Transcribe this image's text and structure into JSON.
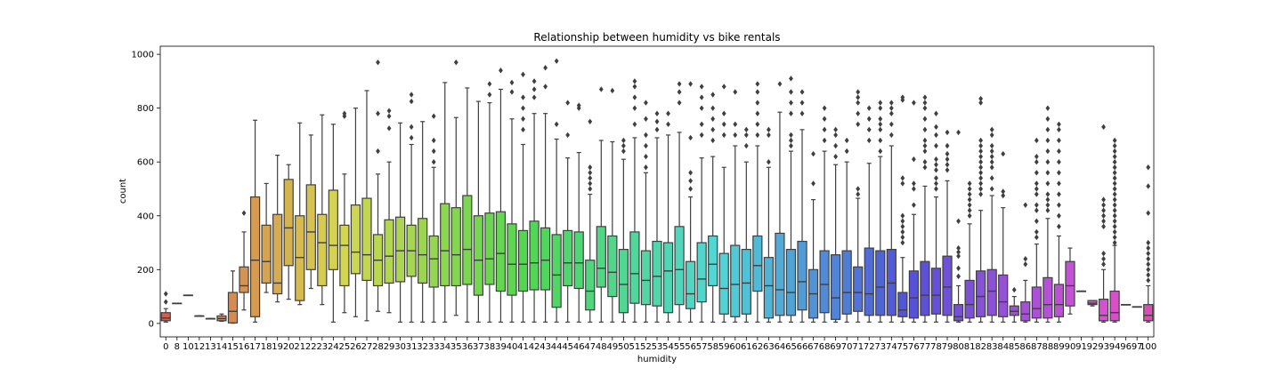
{
  "chart_data": {
    "type": "box",
    "title": "Relationship between humidity vs bike rentals",
    "xlabel": "humidity",
    "ylabel": "count",
    "ylim": [
      -50,
      1030
    ],
    "yticks": [
      0,
      200,
      400,
      600,
      800,
      1000
    ],
    "grid": false,
    "legend": "none",
    "palette": "husl",
    "boxes": [
      {
        "x": "0",
        "q1": 10,
        "median": 20,
        "q3": 40,
        "wlow": 5,
        "whigh": 55,
        "outliers": [
          80,
          110
        ]
      },
      {
        "x": "8",
        "q1": 75,
        "median": 75,
        "q3": 75,
        "wlow": 75,
        "whigh": 75,
        "outliers": []
      },
      {
        "x": "10",
        "q1": 105,
        "median": 105,
        "q3": 105,
        "wlow": 105,
        "whigh": 105,
        "outliers": []
      },
      {
        "x": "12",
        "q1": 28,
        "median": 28,
        "q3": 28,
        "wlow": 28,
        "whigh": 28,
        "outliers": []
      },
      {
        "x": "13",
        "q1": 18,
        "median": 18,
        "q3": 18,
        "wlow": 18,
        "whigh": 18,
        "outliers": []
      },
      {
        "x": "14",
        "q1": 10,
        "median": 18,
        "q3": 28,
        "wlow": 8,
        "whigh": 35,
        "outliers": []
      },
      {
        "x": "15",
        "q1": 2,
        "median": 45,
        "q3": 115,
        "wlow": 1,
        "whigh": 195,
        "outliers": []
      },
      {
        "x": "16",
        "q1": 115,
        "median": 140,
        "q3": 210,
        "wlow": 50,
        "whigh": 340,
        "outliers": [
          410
        ]
      },
      {
        "x": "17",
        "q1": 25,
        "median": 235,
        "q3": 470,
        "wlow": 5,
        "whigh": 755,
        "outliers": []
      },
      {
        "x": "18",
        "q1": 150,
        "median": 230,
        "q3": 365,
        "wlow": 115,
        "whigh": 520,
        "outliers": []
      },
      {
        "x": "19",
        "q1": 110,
        "median": 150,
        "q3": 405,
        "wlow": 80,
        "whigh": 625,
        "outliers": []
      },
      {
        "x": "20",
        "q1": 215,
        "median": 355,
        "q3": 535,
        "wlow": 90,
        "whigh": 590,
        "outliers": []
      },
      {
        "x": "21",
        "q1": 85,
        "median": 245,
        "q3": 400,
        "wlow": 70,
        "whigh": 745,
        "outliers": []
      },
      {
        "x": "22",
        "q1": 200,
        "median": 340,
        "q3": 515,
        "wlow": 130,
        "whigh": 700,
        "outliers": []
      },
      {
        "x": "23",
        "q1": 140,
        "median": 300,
        "q3": 405,
        "wlow": 70,
        "whigh": 775,
        "outliers": []
      },
      {
        "x": "24",
        "q1": 200,
        "median": 290,
        "q3": 495,
        "wlow": 5,
        "whigh": 740,
        "outliers": []
      },
      {
        "x": "25",
        "q1": 140,
        "median": 290,
        "q3": 365,
        "wlow": 40,
        "whigh": 555,
        "outliers": [
          770,
          780
        ]
      },
      {
        "x": "26",
        "q1": 185,
        "median": 265,
        "q3": 440,
        "wlow": 25,
        "whigh": 800,
        "outliers": []
      },
      {
        "x": "27",
        "q1": 160,
        "median": 255,
        "q3": 465,
        "wlow": 10,
        "whigh": 865,
        "outliers": []
      },
      {
        "x": "28",
        "q1": 140,
        "median": 235,
        "q3": 330,
        "wlow": 45,
        "whigh": 555,
        "outliers": [
          640,
          780,
          970
        ]
      },
      {
        "x": "29",
        "q1": 150,
        "median": 250,
        "q3": 385,
        "wlow": 40,
        "whigh": 600,
        "outliers": [
          725,
          770,
          790
        ]
      },
      {
        "x": "30",
        "q1": 155,
        "median": 270,
        "q3": 395,
        "wlow": 5,
        "whigh": 745,
        "outliers": []
      },
      {
        "x": "31",
        "q1": 175,
        "median": 270,
        "q3": 365,
        "wlow": 5,
        "whigh": 665,
        "outliers": [
          690,
          730,
          825,
          850
        ]
      },
      {
        "x": "32",
        "q1": 150,
        "median": 255,
        "q3": 390,
        "wlow": 5,
        "whigh": 750,
        "outliers": []
      },
      {
        "x": "33",
        "q1": 135,
        "median": 240,
        "q3": 325,
        "wlow": 5,
        "whigh": 580,
        "outliers": [
          600,
          640,
          680,
          770
        ]
      },
      {
        "x": "34",
        "q1": 140,
        "median": 270,
        "q3": 445,
        "wlow": 5,
        "whigh": 895,
        "outliers": []
      },
      {
        "x": "35",
        "q1": 140,
        "median": 255,
        "q3": 430,
        "wlow": 30,
        "whigh": 765,
        "outliers": [
          970
        ]
      },
      {
        "x": "36",
        "q1": 145,
        "median": 275,
        "q3": 475,
        "wlow": 5,
        "whigh": 875,
        "outliers": []
      },
      {
        "x": "37",
        "q1": 105,
        "median": 235,
        "q3": 400,
        "wlow": 5,
        "whigh": 825,
        "outliers": []
      },
      {
        "x": "38",
        "q1": 145,
        "median": 240,
        "q3": 410,
        "wlow": 5,
        "whigh": 820,
        "outliers": [
          850,
          890
        ]
      },
      {
        "x": "39",
        "q1": 120,
        "median": 260,
        "q3": 415,
        "wlow": 5,
        "whigh": 870,
        "outliers": [
          940
        ]
      },
      {
        "x": "40",
        "q1": 105,
        "median": 220,
        "q3": 370,
        "wlow": 5,
        "whigh": 760,
        "outliers": [
          860,
          895
        ]
      },
      {
        "x": "41",
        "q1": 120,
        "median": 220,
        "q3": 345,
        "wlow": 5,
        "whigh": 665,
        "outliers": [
          720,
          760,
          800,
          840,
          925
        ]
      },
      {
        "x": "42",
        "q1": 125,
        "median": 225,
        "q3": 380,
        "wlow": 5,
        "whigh": 780,
        "outliers": [
          840,
          870,
          900
        ]
      },
      {
        "x": "43",
        "q1": 125,
        "median": 235,
        "q3": 355,
        "wlow": 5,
        "whigh": 780,
        "outliers": [
          880,
          950
        ]
      },
      {
        "x": "44",
        "q1": 60,
        "median": 180,
        "q3": 330,
        "wlow": 5,
        "whigh": 685,
        "outliers": [
          740,
          975
        ]
      },
      {
        "x": "45",
        "q1": 140,
        "median": 225,
        "q3": 345,
        "wlow": 5,
        "whigh": 615,
        "outliers": [
          700,
          820
        ]
      },
      {
        "x": "46",
        "q1": 130,
        "median": 225,
        "q3": 340,
        "wlow": 5,
        "whigh": 635,
        "outliers": [
          800,
          810
        ]
      },
      {
        "x": "47",
        "q1": 50,
        "median": 120,
        "q3": 235,
        "wlow": 5,
        "whigh": 480,
        "outliers": [
          500,
          520,
          540,
          560,
          580,
          750
        ]
      },
      {
        "x": "48",
        "q1": 135,
        "median": 205,
        "q3": 360,
        "wlow": 5,
        "whigh": 680,
        "outliers": [
          870
        ]
      },
      {
        "x": "49",
        "q1": 100,
        "median": 190,
        "q3": 325,
        "wlow": 5,
        "whigh": 675,
        "outliers": [
          865
        ]
      },
      {
        "x": "50",
        "q1": 40,
        "median": 145,
        "q3": 275,
        "wlow": 5,
        "whigh": 610,
        "outliers": [
          640,
          660,
          680
        ]
      },
      {
        "x": "51",
        "q1": 75,
        "median": 185,
        "q3": 340,
        "wlow": 5,
        "whigh": 690,
        "outliers": [
          740,
          800,
          840,
          880,
          900
        ]
      },
      {
        "x": "52",
        "q1": 70,
        "median": 160,
        "q3": 270,
        "wlow": 5,
        "whigh": 560,
        "outliers": [
          580,
          620,
          660,
          700,
          760,
          820
        ]
      },
      {
        "x": "53",
        "q1": 65,
        "median": 175,
        "q3": 305,
        "wlow": 5,
        "whigh": 690,
        "outliers": [
          720,
          750,
          780
        ]
      },
      {
        "x": "54",
        "q1": 40,
        "median": 195,
        "q3": 300,
        "wlow": 5,
        "whigh": 700,
        "outliers": [
          740,
          780
        ]
      },
      {
        "x": "55",
        "q1": 70,
        "median": 200,
        "q3": 360,
        "wlow": 5,
        "whigh": 710,
        "outliers": [
          820,
          860,
          890
        ]
      },
      {
        "x": "56",
        "q1": 55,
        "median": 110,
        "q3": 230,
        "wlow": 5,
        "whigh": 470,
        "outliers": [
          500,
          530,
          560,
          690,
          890
        ]
      },
      {
        "x": "57",
        "q1": 80,
        "median": 165,
        "q3": 300,
        "wlow": 5,
        "whigh": 615,
        "outliers": [
          700,
          740,
          800,
          840,
          880
        ]
      },
      {
        "x": "58",
        "q1": 140,
        "median": 220,
        "q3": 325,
        "wlow": 5,
        "whigh": 620,
        "outliers": [
          680,
          720,
          760,
          800,
          850
        ]
      },
      {
        "x": "59",
        "q1": 35,
        "median": 130,
        "q3": 260,
        "wlow": 5,
        "whigh": 580,
        "outliers": [
          700,
          740,
          780,
          880
        ]
      },
      {
        "x": "60",
        "q1": 25,
        "median": 145,
        "q3": 290,
        "wlow": 5,
        "whigh": 660,
        "outliers": [
          700,
          740,
          860
        ]
      },
      {
        "x": "61",
        "q1": 35,
        "median": 150,
        "q3": 275,
        "wlow": 5,
        "whigh": 600,
        "outliers": [
          660,
          700,
          720
        ]
      },
      {
        "x": "62",
        "q1": 120,
        "median": 215,
        "q3": 325,
        "wlow": 5,
        "whigh": 660,
        "outliers": [
          700,
          740,
          780,
          820,
          860,
          890
        ]
      },
      {
        "x": "63",
        "q1": 20,
        "median": 140,
        "q3": 245,
        "wlow": 5,
        "whigh": 580,
        "outliers": [
          600,
          700,
          720
        ]
      },
      {
        "x": "64",
        "q1": 30,
        "median": 125,
        "q3": 335,
        "wlow": 5,
        "whigh": 785,
        "outliers": [
          890
        ]
      },
      {
        "x": "65",
        "q1": 30,
        "median": 115,
        "q3": 275,
        "wlow": 5,
        "whigh": 640,
        "outliers": [
          660,
          680,
          700,
          780,
          820,
          860,
          910
        ]
      },
      {
        "x": "66",
        "q1": 50,
        "median": 155,
        "q3": 305,
        "wlow": 5,
        "whigh": 720,
        "outliers": [
          780,
          820,
          860
        ]
      },
      {
        "x": "67",
        "q1": 20,
        "median": 110,
        "q3": 200,
        "wlow": 5,
        "whigh": 460,
        "outliers": [
          520,
          630
        ]
      },
      {
        "x": "68",
        "q1": 40,
        "median": 145,
        "q3": 270,
        "wlow": 5,
        "whigh": 640,
        "outliers": [
          680,
          720,
          760,
          800
        ]
      },
      {
        "x": "69",
        "q1": 15,
        "median": 95,
        "q3": 255,
        "wlow": 5,
        "whigh": 590,
        "outliers": [
          620,
          660,
          700,
          720
        ]
      },
      {
        "x": "70",
        "q1": 35,
        "median": 115,
        "q3": 270,
        "wlow": 5,
        "whigh": 600,
        "outliers": [
          640,
          680
        ]
      },
      {
        "x": "71",
        "q1": 45,
        "median": 115,
        "q3": 210,
        "wlow": 5,
        "whigh": 465,
        "outliers": [
          480,
          500,
          740,
          780,
          820,
          840,
          860
        ]
      },
      {
        "x": "72",
        "q1": 30,
        "median": 110,
        "q3": 280,
        "wlow": 5,
        "whigh": 595,
        "outliers": [
          680,
          720,
          760,
          800
        ]
      },
      {
        "x": "73",
        "q1": 30,
        "median": 135,
        "q3": 270,
        "wlow": 5,
        "whigh": 620,
        "outliers": [
          640,
          680,
          720,
          740,
          760,
          800,
          820
        ]
      },
      {
        "x": "74",
        "q1": 30,
        "median": 150,
        "q3": 275,
        "wlow": 5,
        "whigh": 660,
        "outliers": [
          700,
          740,
          780,
          800,
          820
        ]
      },
      {
        "x": "75",
        "q1": 25,
        "median": 50,
        "q3": 115,
        "wlow": 5,
        "whigh": 245,
        "outliers": [
          300,
          320,
          340,
          360,
          380,
          400,
          520,
          540,
          830,
          840
        ]
      },
      {
        "x": "76",
        "q1": 20,
        "median": 95,
        "q3": 195,
        "wlow": 5,
        "whigh": 405,
        "outliers": [
          440,
          500,
          520,
          610,
          820
        ]
      },
      {
        "x": "77",
        "q1": 30,
        "median": 105,
        "q3": 230,
        "wlow": 5,
        "whigh": 510,
        "outliers": [
          580,
          600,
          640,
          660,
          680,
          720,
          760,
          800,
          820,
          840
        ]
      },
      {
        "x": "78",
        "q1": 35,
        "median": 105,
        "q3": 205,
        "wlow": 5,
        "whigh": 470,
        "outliers": [
          500,
          520,
          540,
          570,
          590,
          610,
          660,
          700,
          730,
          780
        ]
      },
      {
        "x": "79",
        "q1": 30,
        "median": 135,
        "q3": 250,
        "wlow": 5,
        "whigh": 530,
        "outliers": [
          570,
          590,
          610,
          630,
          660,
          710
        ]
      },
      {
        "x": "80",
        "q1": 10,
        "median": 25,
        "q3": 70,
        "wlow": 5,
        "whigh": 140,
        "outliers": [
          175,
          205,
          250,
          265,
          280,
          380,
          710
        ]
      },
      {
        "x": "81",
        "q1": 20,
        "median": 70,
        "q3": 160,
        "wlow": 5,
        "whigh": 370,
        "outliers": [
          400,
          420,
          440,
          460,
          480,
          500,
          520
        ]
      },
      {
        "x": "82",
        "q1": 25,
        "median": 100,
        "q3": 195,
        "wlow": 5,
        "whigh": 420,
        "outliers": [
          480,
          500,
          520,
          540,
          560,
          580,
          600,
          620,
          640,
          660,
          680,
          820,
          835
        ]
      },
      {
        "x": "83",
        "q1": 30,
        "median": 120,
        "q3": 200,
        "wlow": 5,
        "whigh": 475,
        "outliers": [
          500,
          540,
          580,
          600,
          620,
          640,
          660,
          700,
          720
        ]
      },
      {
        "x": "84",
        "q1": 25,
        "median": 80,
        "q3": 180,
        "wlow": 5,
        "whigh": 430,
        "outliers": [
          475,
          490,
          630
        ]
      },
      {
        "x": "85",
        "q1": 30,
        "median": 45,
        "q3": 65,
        "wlow": 5,
        "whigh": 100,
        "outliers": [
          125
        ]
      },
      {
        "x": "86",
        "q1": 10,
        "median": 35,
        "q3": 80,
        "wlow": 5,
        "whigh": 160,
        "outliers": [
          220,
          240,
          440
        ]
      },
      {
        "x": "87",
        "q1": 20,
        "median": 55,
        "q3": 135,
        "wlow": 5,
        "whigh": 295,
        "outliers": [
          320,
          340,
          380,
          420,
          440,
          480,
          500,
          520,
          560,
          600,
          620,
          680
        ]
      },
      {
        "x": "88",
        "q1": 20,
        "median": 70,
        "q3": 170,
        "wlow": 5,
        "whigh": 390,
        "outliers": [
          420,
          440,
          460,
          480,
          520,
          560,
          600,
          640,
          680,
          720,
          760,
          800
        ]
      },
      {
        "x": "89",
        "q1": 25,
        "median": 70,
        "q3": 145,
        "wlow": 5,
        "whigh": 325,
        "outliers": [
          360,
          400,
          440,
          480,
          520,
          560,
          600,
          640,
          680,
          720,
          740
        ]
      },
      {
        "x": "90",
        "q1": 65,
        "median": 140,
        "q3": 230,
        "wlow": 35,
        "whigh": 280,
        "outliers": []
      },
      {
        "x": "91",
        "q1": 120,
        "median": 120,
        "q3": 120,
        "wlow": 120,
        "whigh": 120,
        "outliers": []
      },
      {
        "x": "92",
        "q1": 70,
        "median": 75,
        "q3": 85,
        "wlow": 65,
        "whigh": 85,
        "outliers": []
      },
      {
        "x": "93",
        "q1": 10,
        "median": 30,
        "q3": 90,
        "wlow": 5,
        "whigh": 200,
        "outliers": [
          220,
          240,
          260,
          360,
          380,
          400,
          420,
          440,
          460,
          730
        ]
      },
      {
        "x": "94",
        "q1": 10,
        "median": 40,
        "q3": 120,
        "wlow": 5,
        "whigh": 290,
        "outliers": [
          300,
          320,
          340,
          360,
          380,
          400,
          420,
          440,
          460,
          480,
          500,
          520,
          540,
          560,
          580,
          600,
          620,
          640,
          660,
          680
        ]
      },
      {
        "x": "96",
        "q1": 70,
        "median": 70,
        "q3": 70,
        "wlow": 70,
        "whigh": 70,
        "outliers": []
      },
      {
        "x": "97",
        "q1": 62,
        "median": 62,
        "q3": 62,
        "wlow": 62,
        "whigh": 62,
        "outliers": []
      },
      {
        "x": "100",
        "q1": 10,
        "median": 30,
        "q3": 70,
        "wlow": 5,
        "whigh": 140,
        "outliers": [
          160,
          180,
          200,
          220,
          240,
          260,
          280,
          300,
          410,
          510,
          580
        ]
      }
    ]
  }
}
